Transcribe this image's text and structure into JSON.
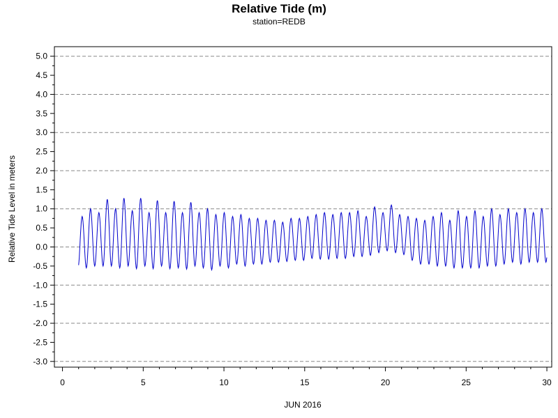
{
  "chart_data": {
    "type": "line",
    "title": "Relative Tide (m)",
    "subtitle": "station=REDB",
    "xlabel": "JUN 2016",
    "ylabel": "Relative Tide Level in meters",
    "xlim": [
      -0.5,
      30.3
    ],
    "ylim": [
      -3.15,
      5.25
    ],
    "x_ticks": [
      0,
      5,
      10,
      15,
      20,
      25,
      30
    ],
    "x_tick_labels": [
      "0",
      "5",
      "10",
      "15",
      "20",
      "25",
      "30"
    ],
    "y_ticks": [
      -3.0,
      -2.5,
      -2.0,
      -1.5,
      -1.0,
      -0.5,
      0.0,
      0.5,
      1.0,
      1.5,
      2.0,
      2.5,
      3.0,
      3.5,
      4.0,
      4.5,
      5.0
    ],
    "y_tick_labels": [
      "-3.0",
      "-2.5",
      "-2.0",
      "-1.5",
      "-1.0",
      "-0.5",
      "0.0",
      "0.5",
      "1.0",
      "1.5",
      "2.0",
      "2.5",
      "3.0",
      "3.5",
      "4.0",
      "4.5",
      "5.0"
    ],
    "grid_y": [
      -3.0,
      -2.0,
      -1.0,
      0.0,
      1.0,
      2.0,
      3.0,
      4.0,
      5.0
    ],
    "series": [
      {
        "color": "#0000cc",
        "x_start": 1.0,
        "x_end": 30.0,
        "period_days": 0.5175,
        "first_peak_x": 1.22,
        "extrema": [
          [
            0.8,
            -0.55
          ],
          [
            1.0,
            -0.5
          ],
          [
            0.9,
            -0.5
          ],
          [
            1.25,
            -0.5
          ],
          [
            1.0,
            -0.55
          ],
          [
            1.28,
            -0.5
          ],
          [
            0.95,
            -0.57
          ],
          [
            1.28,
            -0.5
          ],
          [
            0.9,
            -0.57
          ],
          [
            1.22,
            -0.5
          ],
          [
            0.9,
            -0.57
          ],
          [
            1.2,
            -0.55
          ],
          [
            0.9,
            -0.58
          ],
          [
            1.17,
            -0.5
          ],
          [
            0.9,
            -0.55
          ],
          [
            1.0,
            -0.6
          ],
          [
            0.85,
            -0.5
          ],
          [
            0.9,
            -0.55
          ],
          [
            0.8,
            -0.45
          ],
          [
            0.85,
            -0.5
          ],
          [
            0.75,
            -0.45
          ],
          [
            0.75,
            -0.45
          ],
          [
            0.7,
            -0.4
          ],
          [
            0.7,
            -0.4
          ],
          [
            0.65,
            -0.38
          ],
          [
            0.75,
            -0.35
          ],
          [
            0.75,
            -0.35
          ],
          [
            0.8,
            -0.3
          ],
          [
            0.85,
            -0.32
          ],
          [
            0.9,
            -0.32
          ],
          [
            0.85,
            -0.3
          ],
          [
            0.9,
            -0.3
          ],
          [
            0.9,
            -0.25
          ],
          [
            0.95,
            -0.25
          ],
          [
            0.8,
            -0.22
          ],
          [
            1.05,
            -0.15
          ],
          [
            0.9,
            -0.1
          ],
          [
            1.1,
            -0.15
          ],
          [
            0.85,
            -0.2
          ],
          [
            0.8,
            -0.35
          ],
          [
            0.75,
            -0.45
          ],
          [
            0.7,
            -0.45
          ],
          [
            0.8,
            -0.5
          ],
          [
            0.9,
            -0.5
          ],
          [
            0.7,
            -0.55
          ],
          [
            0.95,
            -0.55
          ],
          [
            0.8,
            -0.55
          ],
          [
            0.95,
            -0.55
          ],
          [
            0.8,
            -0.5
          ],
          [
            1.0,
            -0.5
          ],
          [
            0.85,
            -0.45
          ],
          [
            1.0,
            -0.4
          ],
          [
            0.9,
            -0.45
          ],
          [
            1.0,
            -0.4
          ],
          [
            0.9,
            -0.4
          ],
          [
            1.0,
            -0.4
          ],
          [
            0.9,
            -0.4
          ],
          [
            0.9,
            -0.45
          ],
          [
            0.85,
            -0.4
          ]
        ]
      }
    ]
  }
}
